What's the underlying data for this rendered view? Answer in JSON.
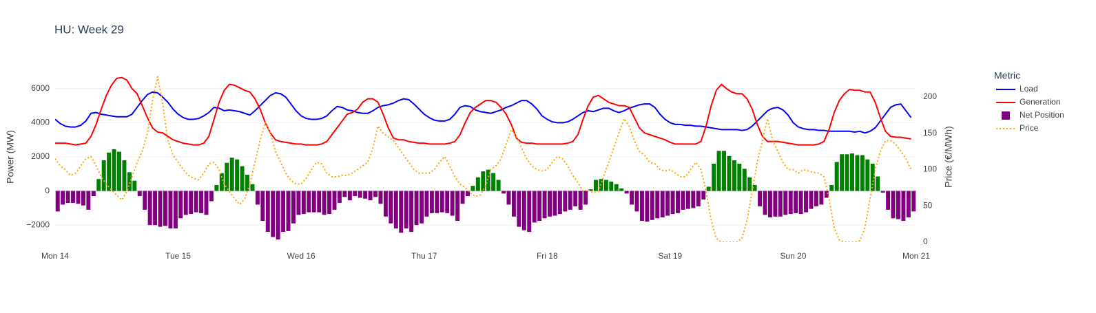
{
  "chart_data": {
    "type": "combo",
    "title": "HU: Week 29",
    "y_label": "Power (MW)",
    "y2_label": "Price (€/MWh)",
    "legend_title": "Metric",
    "grid": true,
    "legend": "right",
    "xlim": [
      0,
      168
    ],
    "xticks": [
      {
        "value": 0,
        "label": "Mon 14"
      },
      {
        "value": 24,
        "label": "Tue 15"
      },
      {
        "value": 48,
        "label": "Wed 16"
      },
      {
        "value": 72,
        "label": "Thu 17"
      },
      {
        "value": 96,
        "label": "Fri 18"
      },
      {
        "value": 120,
        "label": "Sat 19"
      },
      {
        "value": 144,
        "label": "Sun 20"
      },
      {
        "value": 168,
        "label": "Mon 21"
      }
    ],
    "ylim": [
      -3000,
      7000
    ],
    "yticks": [
      {
        "value": -2000,
        "label": "−2000"
      },
      0,
      2000,
      4000,
      6000
    ],
    "y2lim": [
      0,
      235
    ],
    "y2ticks": [
      0,
      50,
      100,
      150,
      200
    ],
    "x": [
      0,
      1,
      2,
      3,
      4,
      5,
      6,
      7,
      8,
      9,
      10,
      11,
      12,
      13,
      14,
      15,
      16,
      17,
      18,
      19,
      20,
      21,
      22,
      23,
      24,
      25,
      26,
      27,
      28,
      29,
      30,
      31,
      32,
      33,
      34,
      35,
      36,
      37,
      38,
      39,
      40,
      41,
      42,
      43,
      44,
      45,
      46,
      47,
      48,
      49,
      50,
      51,
      52,
      53,
      54,
      55,
      56,
      57,
      58,
      59,
      60,
      61,
      62,
      63,
      64,
      65,
      66,
      67,
      68,
      69,
      70,
      71,
      72,
      73,
      74,
      75,
      76,
      77,
      78,
      79,
      80,
      81,
      82,
      83,
      84,
      85,
      86,
      87,
      88,
      89,
      90,
      91,
      92,
      93,
      94,
      95,
      96,
      97,
      98,
      99,
      100,
      101,
      102,
      103,
      104,
      105,
      106,
      107,
      108,
      109,
      110,
      111,
      112,
      113,
      114,
      115,
      116,
      117,
      118,
      119,
      120,
      121,
      122,
      123,
      124,
      125,
      126,
      127,
      128,
      129,
      130,
      131,
      132,
      133,
      134,
      135,
      136,
      137,
      138,
      139,
      140,
      141,
      142,
      143,
      144,
      145,
      146,
      147,
      148,
      149,
      150,
      151,
      152,
      153,
      154,
      155,
      156,
      157,
      158,
      159,
      160,
      161,
      162,
      163,
      164,
      165,
      166,
      167
    ],
    "series": [
      {
        "name": "Load",
        "type": "line",
        "color": "#0000ff",
        "values": [
          4200,
          3950,
          3800,
          3750,
          3750,
          3850,
          4100,
          4550,
          4600,
          4500,
          4450,
          4400,
          4350,
          4350,
          4350,
          4500,
          4900,
          5300,
          5650,
          5800,
          5750,
          5500,
          5200,
          4800,
          4500,
          4300,
          4200,
          4200,
          4250,
          4400,
          4600,
          4900,
          4850,
          4700,
          4750,
          4700,
          4650,
          4550,
          4450,
          4700,
          5000,
          5300,
          5600,
          5750,
          5700,
          5500,
          5100,
          4700,
          4400,
          4250,
          4200,
          4200,
          4250,
          4400,
          4700,
          4950,
          4900,
          4750,
          4700,
          4600,
          4550,
          4550,
          4700,
          4900,
          5000,
          5050,
          5150,
          5300,
          5400,
          5350,
          5100,
          4800,
          4500,
          4300,
          4150,
          4100,
          4100,
          4200,
          4500,
          4900,
          5000,
          4950,
          4750,
          4650,
          4600,
          4550,
          4650,
          4750,
          4900,
          5000,
          5150,
          5300,
          5300,
          5100,
          4800,
          4400,
          4200,
          4050,
          4000,
          4000,
          4050,
          4200,
          4400,
          4600,
          4700,
          4650,
          4750,
          4850,
          4850,
          4700,
          4600,
          4700,
          4850,
          4950,
          5050,
          5100,
          5100,
          4900,
          4500,
          4200,
          4000,
          3900,
          3900,
          3850,
          3850,
          3800,
          3800,
          3750,
          3700,
          3650,
          3600,
          3600,
          3600,
          3600,
          3550,
          3600,
          3800,
          4100,
          4400,
          4700,
          4850,
          4900,
          4750,
          4450,
          4000,
          3750,
          3650,
          3600,
          3600,
          3550,
          3550,
          3500,
          3500,
          3500,
          3500,
          3500,
          3450,
          3500,
          3400,
          3500,
          3700,
          4100,
          4500,
          4900,
          5050,
          5100,
          4700,
          4300
        ]
      },
      {
        "name": "Generation",
        "type": "line",
        "color": "#ff0000",
        "values": [
          2800,
          2800,
          2800,
          2750,
          2700,
          2750,
          2800,
          3200,
          3900,
          4800,
          5600,
          6200,
          6600,
          6650,
          6500,
          6000,
          5700,
          5000,
          4300,
          3700,
          3450,
          3400,
          3200,
          3000,
          2900,
          2800,
          2750,
          2700,
          2700,
          2800,
          3200,
          4200,
          5200,
          5900,
          6250,
          6200,
          6050,
          5900,
          5800,
          5400,
          4800,
          4000,
          3400,
          3000,
          2900,
          2850,
          2800,
          2750,
          2750,
          2700,
          2700,
          2700,
          2750,
          2900,
          3300,
          3700,
          4100,
          4500,
          4600,
          4800,
          5200,
          5400,
          5400,
          5200,
          4500,
          3700,
          3100,
          3000,
          3000,
          2900,
          2850,
          2800,
          2800,
          2750,
          2750,
          2750,
          2750,
          2800,
          2900,
          3300,
          4000,
          4600,
          4900,
          5100,
          5300,
          5300,
          5200,
          4900,
          4500,
          3900,
          3100,
          2850,
          2800,
          2800,
          2750,
          2750,
          2750,
          2750,
          2750,
          2750,
          2800,
          2900,
          3300,
          4200,
          5000,
          5500,
          5600,
          5400,
          5200,
          5100,
          5000,
          5000,
          4900,
          4300,
          3700,
          3400,
          3300,
          3200,
          3100,
          3000,
          2850,
          2750,
          2750,
          2750,
          2750,
          2750,
          2900,
          3800,
          5000,
          5900,
          6250,
          6000,
          5800,
          5700,
          5700,
          5400,
          4800,
          3900,
          3200,
          2900,
          2900,
          2900,
          2850,
          2800,
          2750,
          2700,
          2700,
          2700,
          2700,
          2750,
          2900,
          3600,
          4600,
          5300,
          5700,
          5950,
          5900,
          5900,
          5800,
          5800,
          5200,
          4300,
          3500,
          3200,
          3150,
          3150,
          3100,
          3050
        ]
      },
      {
        "name": "Net Position",
        "type": "bar",
        "color": "#800080",
        "positive_color": "#008000",
        "values": [
          -1200,
          -800,
          -700,
          -700,
          -750,
          -850,
          -1100,
          -300,
          700,
          1800,
          2250,
          2450,
          2300,
          1800,
          1100,
          600,
          -300,
          -1100,
          -2000,
          -2000,
          -2100,
          -2050,
          -2200,
          -2200,
          -1600,
          -1400,
          -1350,
          -1250,
          -1300,
          -1400,
          -600,
          350,
          1050,
          1650,
          1950,
          1850,
          1450,
          950,
          400,
          -800,
          -1750,
          -2400,
          -2700,
          -2850,
          -2400,
          -2350,
          -1900,
          -1400,
          -1350,
          -1250,
          -1250,
          -1250,
          -1400,
          -1350,
          -1100,
          -700,
          -350,
          -550,
          -300,
          -400,
          -450,
          -550,
          -350,
          -750,
          -1500,
          -1900,
          -2200,
          -2450,
          -2200,
          -2400,
          -2000,
          -1900,
          -1500,
          -1300,
          -1300,
          -1250,
          -1300,
          -1450,
          -1750,
          -750,
          -300,
          300,
          800,
          1150,
          1250,
          1050,
          650,
          -150,
          -800,
          -1500,
          -2100,
          -2300,
          -2400,
          -1850,
          -1750,
          -1600,
          -1500,
          -1450,
          -1350,
          -1200,
          -1100,
          -900,
          -1100,
          -800,
          100,
          650,
          700,
          650,
          550,
          400,
          150,
          -150,
          -800,
          -1200,
          -1750,
          -1800,
          -1700,
          -1600,
          -1550,
          -1450,
          -1350,
          -1300,
          -1100,
          -1050,
          -1000,
          -900,
          -500,
          250,
          1600,
          2350,
          2350,
          2050,
          1800,
          1600,
          1300,
          800,
          350,
          -900,
          -1400,
          -1550,
          -1500,
          -1500,
          -1400,
          -1350,
          -1300,
          -1350,
          -1250,
          -1050,
          -900,
          -800,
          -400,
          350,
          1700,
          2150,
          2150,
          2200,
          2100,
          2100,
          1850,
          1600,
          850,
          -100,
          -1100,
          -1600,
          -1650,
          -1750,
          -1550,
          -1200
        ]
      },
      {
        "name": "Price",
        "type": "line",
        "axis": "y2",
        "dash": "dot",
        "color": "#ffa500",
        "values": [
          115,
          105,
          100,
          92,
          95,
          105,
          115,
          118,
          105,
          90,
          80,
          72,
          65,
          58,
          70,
          90,
          110,
          125,
          150,
          195,
          228,
          190,
          140,
          120,
          110,
          100,
          92,
          88,
          86,
          95,
          108,
          110,
          100,
          80,
          70,
          60,
          52,
          60,
          80,
          110,
          140,
          165,
          150,
          125,
          110,
          95,
          85,
          80,
          80,
          88,
          100,
          110,
          108,
          95,
          90,
          90,
          92,
          92,
          95,
          100,
          105,
          110,
          130,
          160,
          150,
          145,
          140,
          130,
          120,
          110,
          100,
          95,
          95,
          95,
          100,
          110,
          118,
          105,
          90,
          80,
          75,
          68,
          63,
          65,
          78,
          100,
          105,
          115,
          135,
          155,
          145,
          130,
          115,
          105,
          100,
          98,
          100,
          110,
          118,
          115,
          105,
          92,
          82,
          70,
          72,
          68,
          70,
          90,
          110,
          130,
          150,
          170,
          160,
          140,
          125,
          120,
          110,
          108,
          100,
          98,
          100,
          95,
          90,
          90,
          100,
          110,
          100,
          70,
          30,
          5,
          0,
          0,
          0,
          0,
          5,
          30,
          70,
          110,
          140,
          170,
          140,
          125,
          110,
          100,
          100,
          95,
          100,
          98,
          96,
          95,
          90,
          60,
          20,
          3,
          0,
          0,
          0,
          2,
          20,
          60,
          100,
          125,
          140,
          140,
          135,
          125,
          115,
          100
        ]
      }
    ]
  }
}
